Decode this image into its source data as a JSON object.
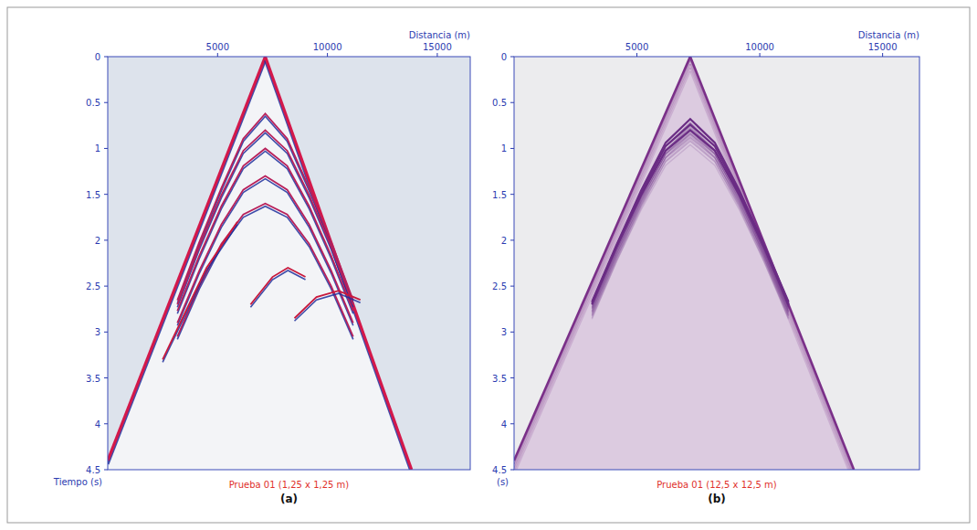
{
  "chart_data": [
    {
      "type": "line",
      "title": "Prueba 01 (1,25 x 1,25 m)",
      "subtitle": "(a)",
      "x_label": "Distancia (m)",
      "y_label": "Tiempo (s)",
      "xlim": [
        0,
        16500
      ],
      "xticks": [
        5000,
        10000,
        15000
      ],
      "ylim": [
        4.5,
        0
      ],
      "yticks": [
        0,
        0.5,
        1,
        1.5,
        2,
        2.5,
        3,
        3.5,
        4,
        4.5
      ],
      "series": [
        {
          "color": "#d4184a",
          "x": [
            7170,
            0
          ],
          "values": [
            0,
            4.4
          ]
        },
        {
          "color": "#d4184a",
          "x": [
            7170,
            13830
          ],
          "values": [
            0,
            4.5
          ]
        },
        {
          "color": "#b8205a",
          "x": [
            3170,
            4170,
            5170,
            6170,
            7170,
            8170,
            9170,
            10170,
            11170
          ],
          "values": [
            2.655,
            2.02,
            1.432,
            0.894,
            0.62,
            0.894,
            1.432,
            2.02,
            2.655
          ]
        },
        {
          "color": "#b8205a",
          "x": [
            3170,
            4170,
            5170,
            6170,
            7170,
            8170,
            9170,
            10170,
            11170
          ],
          "values": [
            2.7,
            2.07,
            1.51,
            1.025,
            0.8,
            1.025,
            1.51,
            2.07,
            2.7
          ]
        },
        {
          "color": "#b8205a",
          "x": [
            3170,
            4170,
            5170,
            6170,
            7170,
            8170,
            9170,
            10170,
            11170
          ],
          "values": [
            2.77,
            2.17,
            1.63,
            1.19,
            1,
            1.19,
            1.63,
            2.17,
            2.77
          ]
        },
        {
          "color": "#b8205a",
          "x": [
            3170,
            4170,
            5170,
            6170,
            7170,
            8170,
            9170,
            10170,
            11170
          ],
          "values": [
            2.9,
            2.33,
            1.83,
            1.45,
            1.3,
            1.45,
            1.83,
            2.33,
            2.9
          ]
        },
        {
          "color": "#b8205a",
          "x": [
            3170,
            4170,
            5170,
            6170,
            7170,
            8170,
            9170,
            10170,
            11170
          ],
          "values": [
            3.05,
            2.5,
            2.04,
            1.72,
            1.6,
            1.72,
            2.04,
            2.5,
            3.05
          ]
        },
        {
          "color": "#c8183c",
          "x": [
            8500,
            9500,
            10500,
            11500
          ],
          "values": [
            2.85,
            2.62,
            2.55,
            2.65
          ]
        },
        {
          "color": "#c8183c",
          "x": [
            6500,
            7500,
            8200,
            9000
          ],
          "values": [
            2.7,
            2.4,
            2.3,
            2.4
          ]
        },
        {
          "color": "#c8183c",
          "x": [
            5900,
            4500,
            3500,
            2500
          ],
          "values": [
            1.8,
            2.3,
            2.8,
            3.3
          ]
        }
      ]
    },
    {
      "type": "line",
      "title": "Prueba 01 (12,5 x 12,5 m)",
      "subtitle": "(b)",
      "x_label": "Distancia (m)",
      "y_label": "(s)",
      "xlim": [
        0,
        16500
      ],
      "xticks": [
        5000,
        10000,
        15000
      ],
      "ylim": [
        4.5,
        0
      ],
      "yticks": [
        0,
        0.5,
        1,
        1.5,
        2,
        2.5,
        3,
        3.5,
        4,
        4.5
      ],
      "series": [
        {
          "color": "#7a2f88",
          "x": [
            7170,
            0
          ],
          "values": [
            0,
            4.4
          ]
        },
        {
          "color": "#7a2f88",
          "x": [
            7170,
            13830
          ],
          "values": [
            0,
            4.5
          ]
        },
        {
          "color": "#6a2c84",
          "x": [
            3170,
            4170,
            5170,
            6170,
            7170,
            8170,
            9170,
            10170,
            11170
          ],
          "values": [
            2.669,
            2.051,
            1.459,
            0.937,
            0.68,
            0.937,
            1.459,
            2.051,
            2.669
          ]
        },
        {
          "color": "#6a2c84",
          "x": [
            3170,
            4170,
            5170,
            6170,
            7170,
            8170,
            9170,
            10170,
            11170
          ],
          "values": [
            2.685,
            2.072,
            1.488,
            0.974,
            0.74,
            0.974,
            1.488,
            2.072,
            2.685
          ]
        },
        {
          "color": "#6a2c84",
          "x": [
            3170,
            4170,
            5170,
            6170,
            7170,
            8170,
            9170,
            10170,
            11170
          ],
          "values": [
            2.7,
            2.07,
            1.51,
            1.025,
            0.8,
            1.025,
            1.51,
            2.07,
            2.7
          ]
        }
      ]
    }
  ]
}
